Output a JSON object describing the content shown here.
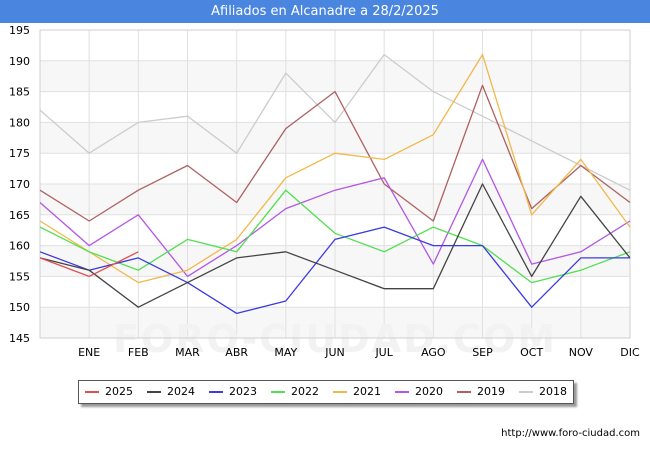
{
  "header": {
    "title": "Afiliados en Alcanadre a 28/2/2025"
  },
  "source_url": "http://www.foro-ciudad.com",
  "watermark": "FORO-CIUDAD.COM",
  "chart_data": {
    "type": "line",
    "title": "Afiliados en Alcanadre a 28/2/2025",
    "xlabel": "",
    "ylabel": "",
    "categories": [
      "",
      "ENE",
      "FEB",
      "MAR",
      "ABR",
      "MAY",
      "JUN",
      "JUL",
      "AGO",
      "SEP",
      "OCT",
      "NOV",
      "DIC"
    ],
    "ylim": [
      145,
      195
    ],
    "yticks": [
      145,
      150,
      155,
      160,
      165,
      170,
      175,
      180,
      185,
      190,
      195
    ],
    "grid": true,
    "legend_position": "bottom",
    "series": [
      {
        "name": "2025",
        "color": "#e05050",
        "values": [
          158,
          155,
          159,
          null,
          null,
          null,
          null,
          null,
          null,
          null,
          null,
          null,
          null
        ]
      },
      {
        "name": "2024",
        "color": "#444444",
        "values": [
          158,
          156,
          150,
          154,
          158,
          159,
          156,
          153,
          153,
          170,
          155,
          168,
          158
        ]
      },
      {
        "name": "2023",
        "color": "#3b3be0",
        "values": [
          159,
          156,
          158,
          154,
          149,
          151,
          161,
          163,
          160,
          160,
          150,
          158,
          158
        ]
      },
      {
        "name": "2022",
        "color": "#4fe04f",
        "values": [
          163,
          159,
          156,
          161,
          159,
          169,
          162,
          159,
          163,
          160,
          154,
          156,
          159
        ]
      },
      {
        "name": "2021",
        "color": "#f2b84a",
        "values": [
          164,
          159,
          154,
          156,
          161,
          171,
          175,
          174,
          178,
          191,
          165,
          174,
          163
        ]
      },
      {
        "name": "2020",
        "color": "#b455e6",
        "values": [
          167,
          160,
          165,
          155,
          160,
          166,
          169,
          171,
          157,
          174,
          157,
          159,
          164
        ]
      },
      {
        "name": "2019",
        "color": "#b06060",
        "values": [
          169,
          164,
          169,
          173,
          167,
          179,
          185,
          170,
          164,
          186,
          166,
          173,
          167
        ]
      },
      {
        "name": "2018",
        "color": "#cccccc",
        "values": [
          182,
          175,
          180,
          181,
          175,
          188,
          180,
          191,
          185,
          181,
          177,
          173,
          169
        ]
      }
    ]
  }
}
